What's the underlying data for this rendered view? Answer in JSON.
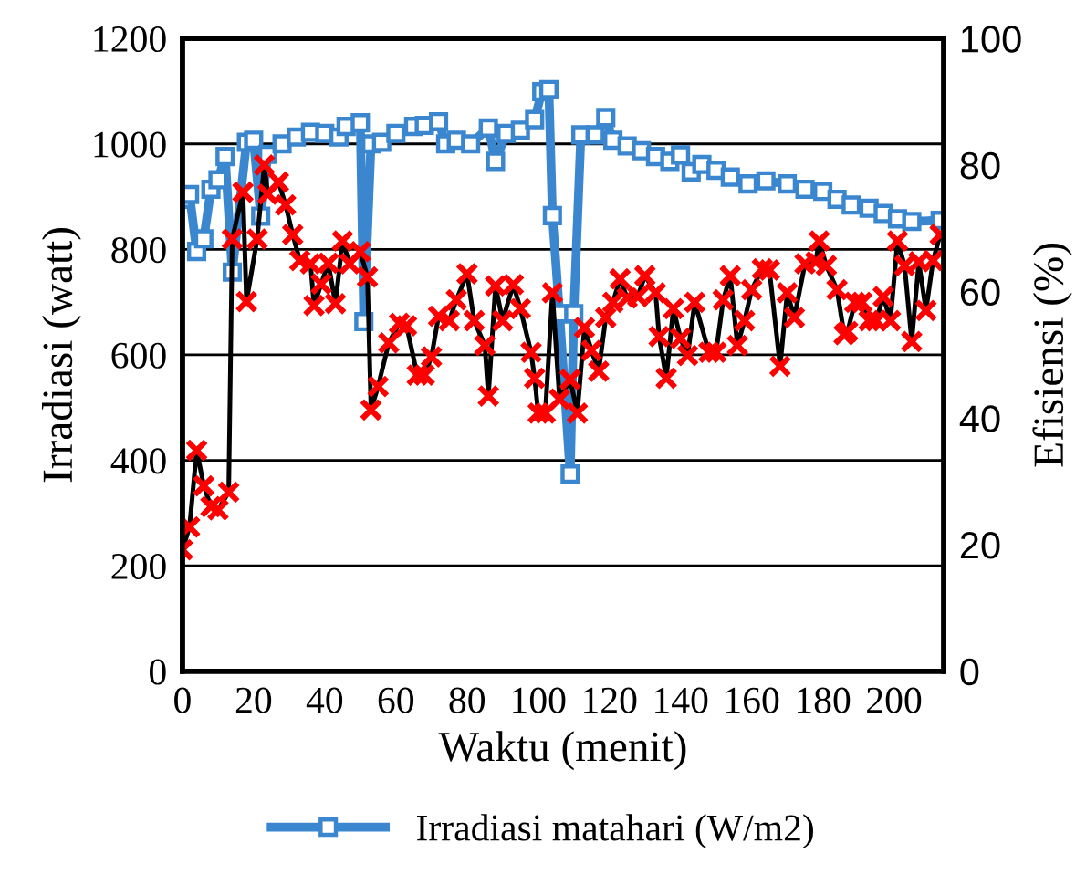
{
  "chart_data": {
    "type": "line",
    "xlabel": "Waktu (menit)",
    "ylabel": "Irradiasi (watt)",
    "y2label": "Efisiensi (%)",
    "xlim": [
      0,
      214
    ],
    "xticks": [
      0,
      20,
      40,
      60,
      80,
      100,
      120,
      140,
      160,
      180,
      200
    ],
    "ylim": [
      0,
      1200
    ],
    "yticks": [
      0,
      200,
      400,
      600,
      800,
      1000,
      1200
    ],
    "y2lim": [
      0,
      100
    ],
    "y2ticks": [
      0,
      20,
      40,
      60,
      80,
      100
    ],
    "grid": "y",
    "legend": "bottom",
    "series": [
      {
        "name": "Irradiasi matahari (W/m2)",
        "color": "#3a87d0",
        "marker": "square",
        "axis": "y",
        "x": [
          0,
          2,
          4,
          6,
          8,
          10,
          12,
          14,
          18,
          20,
          22,
          24,
          28,
          32,
          36,
          40,
          44,
          46,
          50,
          51,
          53,
          56,
          60,
          65,
          68,
          72,
          74,
          77,
          81,
          86,
          88,
          91,
          95,
          99,
          101,
          103,
          104,
          106,
          109,
          110,
          112,
          116,
          119,
          121,
          125,
          129,
          133,
          137,
          140,
          143,
          146,
          150,
          154,
          159,
          164,
          170,
          175,
          180,
          184,
          188,
          193,
          197,
          201,
          205,
          213
        ],
        "values": [
          895,
          904,
          796,
          820,
          914,
          932,
          976,
          757,
          1003,
          1007,
          863,
          980,
          1000,
          1013,
          1022,
          1020,
          1013,
          1033,
          1040,
          663,
          1000,
          1003,
          1020,
          1033,
          1035,
          1042,
          1000,
          1007,
          1000,
          1030,
          967,
          1020,
          1026,
          1046,
          1099,
          1103,
          864,
          678,
          374,
          678,
          1017,
          1017,
          1050,
          1007,
          996,
          987,
          976,
          967,
          979,
          947,
          961,
          950,
          937,
          924,
          930,
          924,
          914,
          910,
          895,
          884,
          878,
          868,
          858,
          853,
          855
        ]
      },
      {
        "color": "#ff0000",
        "marker": "cross",
        "axis": "y2",
        "x": [
          0,
          2,
          4,
          6,
          8,
          10,
          13,
          14,
          17,
          18,
          21,
          23,
          24,
          27,
          29,
          31,
          33,
          36,
          37,
          39,
          41,
          43,
          45,
          47,
          50,
          52,
          53,
          55,
          58,
          61,
          63,
          66,
          68,
          70,
          72,
          75,
          77,
          80,
          82,
          85,
          86,
          88,
          90,
          93,
          95,
          98,
          99,
          100,
          102,
          104,
          106,
          109,
          111,
          113,
          115,
          117,
          119,
          121,
          123,
          125,
          128,
          130,
          133,
          134,
          136,
          138,
          140,
          142,
          144,
          148,
          150,
          152,
          154,
          156,
          158,
          160,
          163,
          165,
          168,
          170,
          172,
          175,
          178,
          179,
          181,
          184,
          186,
          187,
          189,
          191,
          193,
          195,
          197,
          199,
          201,
          203,
          205,
          207,
          209,
          211,
          213
        ],
        "values": [
          19.2,
          22.8,
          34.9,
          29.3,
          26,
          25.5,
          28.3,
          68.3,
          75.7,
          58.4,
          68.3,
          80,
          75.4,
          77.3,
          73.7,
          69,
          64.9,
          64.4,
          57.8,
          61.2,
          64.5,
          58.1,
          68,
          64.4,
          66.3,
          62.3,
          41.3,
          45,
          51.9,
          55,
          54.6,
          46.8,
          46.8,
          49.7,
          56.1,
          55.4,
          58.7,
          62.8,
          55.4,
          51.5,
          43.5,
          60.9,
          55.4,
          61.1,
          57.3,
          50.4,
          46.3,
          40.8,
          40.8,
          59.8,
          43,
          46.1,
          40.8,
          54.3,
          50.7,
          47.4,
          55.9,
          58.3,
          62,
          59,
          59.2,
          62.5,
          59.8,
          52.9,
          46.3,
          57.3,
          52.6,
          49.9,
          58.3,
          50.4,
          50.4,
          58.7,
          62.5,
          51.5,
          55.4,
          60.3,
          63.6,
          63.4,
          48.2,
          59.8,
          55.9,
          64.4,
          64.7,
          68,
          64.1,
          60.3,
          53.2,
          53.7,
          58.3,
          58.3,
          55.4,
          55.4,
          59.2,
          55.4,
          68,
          64.1,
          52.1,
          64.7,
          57,
          64.9,
          69
        ]
      }
    ]
  }
}
